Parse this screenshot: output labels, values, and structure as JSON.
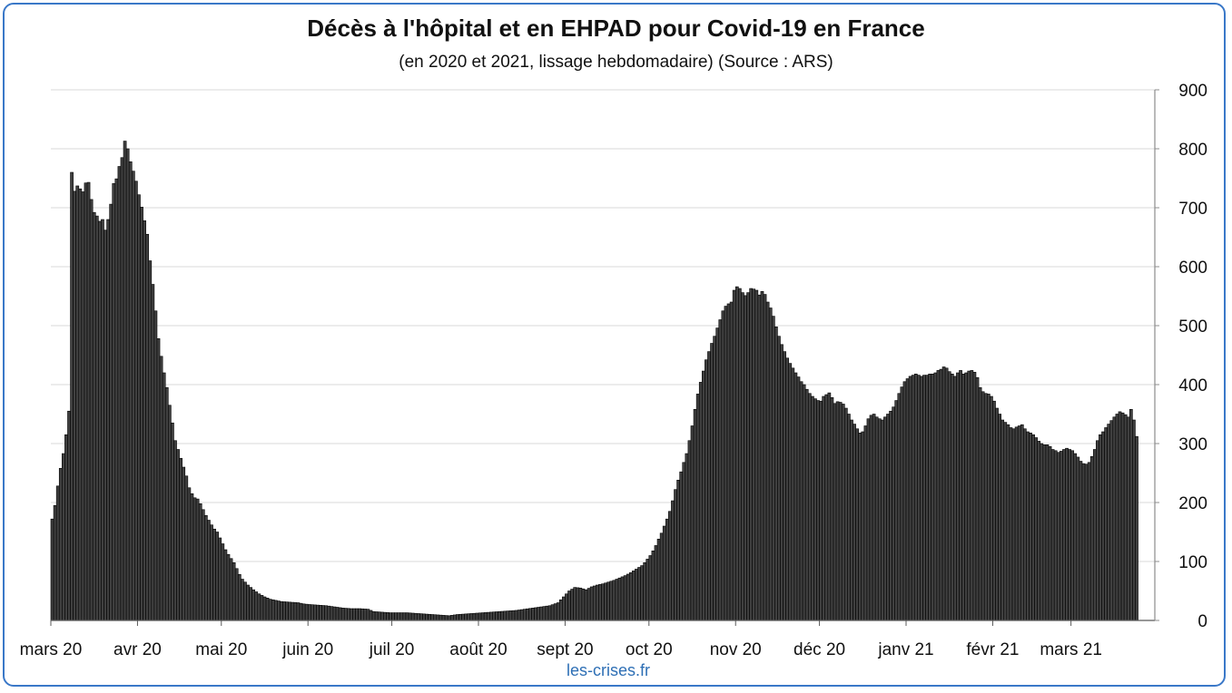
{
  "chart_data": {
    "type": "bar",
    "title": "Décès à l'hôpital et en EHPAD pour Covid-19 en France",
    "subtitle": "(en 2020 et 2021, lissage hebdomadaire) (Source : ARS)",
    "source": "les-crises.fr",
    "xlabel": "",
    "ylabel": "",
    "ylim": [
      0,
      900
    ],
    "y_ticks": [
      0,
      100,
      200,
      300,
      400,
      500,
      600,
      700,
      800,
      900
    ],
    "y_axis_side": "right",
    "grid": true,
    "legend": "none",
    "bar_color": "#404040",
    "x_tick_labels": [
      "mars 20",
      "avr 20",
      "mai 20",
      "juin 20",
      "juil 20",
      "août 20",
      "sept 20",
      "oct 20",
      "nov 20",
      "déc 20",
      "janv 21",
      "févr 21",
      "mars 21"
    ],
    "x_tick_days": [
      0,
      31,
      61,
      92,
      122,
      153,
      184,
      214,
      245,
      275,
      306,
      337,
      365
    ],
    "x_range_days": [
      0,
      395
    ],
    "x_start_date": "2020-03-01",
    "x_unit": "day index from 2020-03-01",
    "anchor_points": [
      [
        0,
        172
      ],
      [
        1,
        195
      ],
      [
        2,
        228
      ],
      [
        3,
        258
      ],
      [
        4,
        283
      ],
      [
        5,
        315
      ],
      [
        6,
        355
      ],
      [
        7,
        760
      ],
      [
        8,
        728
      ],
      [
        9,
        737
      ],
      [
        10,
        732
      ],
      [
        11,
        727
      ],
      [
        12,
        742
      ],
      [
        13,
        743
      ],
      [
        14,
        714
      ],
      [
        15,
        692
      ],
      [
        16,
        686
      ],
      [
        17,
        677
      ],
      [
        18,
        680
      ],
      [
        19,
        662
      ],
      [
        20,
        680
      ],
      [
        21,
        706
      ],
      [
        22,
        741
      ],
      [
        23,
        749
      ],
      [
        24,
        770
      ],
      [
        25,
        785
      ],
      [
        26,
        813
      ],
      [
        27,
        800
      ],
      [
        28,
        778
      ],
      [
        29,
        762
      ],
      [
        30,
        745
      ],
      [
        31,
        722
      ],
      [
        32,
        701
      ],
      [
        33,
        678
      ],
      [
        34,
        655
      ],
      [
        35,
        610
      ],
      [
        36,
        570
      ],
      [
        37,
        525
      ],
      [
        38,
        478
      ],
      [
        39,
        448
      ],
      [
        40,
        420
      ],
      [
        41,
        395
      ],
      [
        42,
        365
      ],
      [
        43,
        335
      ],
      [
        44,
        305
      ],
      [
        45,
        290
      ],
      [
        46,
        275
      ],
      [
        47,
        260
      ],
      [
        48,
        245
      ],
      [
        49,
        225
      ],
      [
        50,
        215
      ],
      [
        51,
        208
      ],
      [
        52,
        206
      ],
      [
        53,
        198
      ],
      [
        54,
        188
      ],
      [
        55,
        178
      ],
      [
        56,
        170
      ],
      [
        57,
        162
      ],
      [
        58,
        155
      ],
      [
        59,
        150
      ],
      [
        60,
        140
      ],
      [
        61,
        130
      ],
      [
        62,
        120
      ],
      [
        63,
        112
      ],
      [
        64,
        105
      ],
      [
        65,
        98
      ],
      [
        66,
        88
      ],
      [
        67,
        78
      ],
      [
        68,
        70
      ],
      [
        69,
        65
      ],
      [
        70,
        60
      ],
      [
        72,
        52
      ],
      [
        74,
        45
      ],
      [
        76,
        40
      ],
      [
        78,
        36
      ],
      [
        80,
        34
      ],
      [
        82,
        32
      ],
      [
        85,
        31
      ],
      [
        88,
        30
      ],
      [
        90,
        28
      ],
      [
        92,
        27
      ],
      [
        95,
        26
      ],
      [
        98,
        25
      ],
      [
        101,
        23
      ],
      [
        104,
        21
      ],
      [
        107,
        20
      ],
      [
        110,
        20
      ],
      [
        113,
        19
      ],
      [
        115,
        15
      ],
      [
        118,
        14
      ],
      [
        121,
        13
      ],
      [
        124,
        13
      ],
      [
        127,
        13
      ],
      [
        130,
        12
      ],
      [
        133,
        11
      ],
      [
        136,
        10
      ],
      [
        139,
        9
      ],
      [
        142,
        8
      ],
      [
        145,
        10
      ],
      [
        148,
        11
      ],
      [
        151,
        12
      ],
      [
        154,
        13
      ],
      [
        157,
        14
      ],
      [
        160,
        15
      ],
      [
        163,
        16
      ],
      [
        166,
        17
      ],
      [
        169,
        19
      ],
      [
        172,
        21
      ],
      [
        175,
        23
      ],
      [
        178,
        25
      ],
      [
        181,
        30
      ],
      [
        183,
        40
      ],
      [
        185,
        50
      ],
      [
        187,
        56
      ],
      [
        189,
        55
      ],
      [
        191,
        52
      ],
      [
        193,
        57
      ],
      [
        195,
        60
      ],
      [
        197,
        62
      ],
      [
        199,
        65
      ],
      [
        201,
        68
      ],
      [
        203,
        72
      ],
      [
        205,
        76
      ],
      [
        207,
        81
      ],
      [
        209,
        87
      ],
      [
        211,
        93
      ],
      [
        212,
        98
      ],
      [
        213,
        104
      ],
      [
        214,
        110
      ],
      [
        215,
        118
      ],
      [
        216,
        127
      ],
      [
        217,
        138
      ],
      [
        218,
        148
      ],
      [
        219,
        160
      ],
      [
        220,
        172
      ],
      [
        221,
        185
      ],
      [
        222,
        203
      ],
      [
        223,
        222
      ],
      [
        224,
        238
      ],
      [
        225,
        252
      ],
      [
        226,
        268
      ],
      [
        227,
        283
      ],
      [
        228,
        305
      ],
      [
        229,
        330
      ],
      [
        230,
        358
      ],
      [
        231,
        384
      ],
      [
        232,
        404
      ],
      [
        233,
        423
      ],
      [
        234,
        442
      ],
      [
        235,
        456
      ],
      [
        236,
        470
      ],
      [
        237,
        482
      ],
      [
        238,
        496
      ],
      [
        239,
        510
      ],
      [
        240,
        525
      ],
      [
        241,
        533
      ],
      [
        242,
        537
      ],
      [
        243,
        540
      ],
      [
        244,
        560
      ],
      [
        245,
        566
      ],
      [
        246,
        563
      ],
      [
        247,
        556
      ],
      [
        248,
        551
      ],
      [
        249,
        556
      ],
      [
        250,
        563
      ],
      [
        251,
        562
      ],
      [
        252,
        560
      ],
      [
        253,
        552
      ],
      [
        254,
        558
      ],
      [
        255,
        553
      ],
      [
        256,
        540
      ],
      [
        257,
        530
      ],
      [
        258,
        516
      ],
      [
        259,
        498
      ],
      [
        260,
        482
      ],
      [
        261,
        468
      ],
      [
        262,
        456
      ],
      [
        263,
        445
      ],
      [
        264,
        436
      ],
      [
        265,
        428
      ],
      [
        266,
        420
      ],
      [
        267,
        413
      ],
      [
        268,
        405
      ],
      [
        269,
        400
      ],
      [
        270,
        392
      ],
      [
        271,
        385
      ],
      [
        272,
        380
      ],
      [
        273,
        376
      ],
      [
        274,
        373
      ],
      [
        275,
        372
      ],
      [
        276,
        380
      ],
      [
        277,
        383
      ],
      [
        278,
        386
      ],
      [
        279,
        378
      ],
      [
        280,
        368
      ],
      [
        281,
        371
      ],
      [
        282,
        370
      ],
      [
        283,
        367
      ],
      [
        284,
        360
      ],
      [
        285,
        350
      ],
      [
        286,
        340
      ],
      [
        287,
        333
      ],
      [
        288,
        325
      ],
      [
        289,
        318
      ],
      [
        290,
        320
      ],
      [
        291,
        330
      ],
      [
        292,
        342
      ],
      [
        293,
        348
      ],
      [
        294,
        350
      ],
      [
        295,
        345
      ],
      [
        296,
        342
      ],
      [
        297,
        340
      ],
      [
        298,
        345
      ],
      [
        299,
        350
      ],
      [
        300,
        355
      ],
      [
        301,
        362
      ],
      [
        302,
        373
      ],
      [
        303,
        385
      ],
      [
        304,
        396
      ],
      [
        305,
        405
      ],
      [
        306,
        410
      ],
      [
        307,
        414
      ],
      [
        308,
        416
      ],
      [
        309,
        418
      ],
      [
        310,
        416
      ],
      [
        311,
        414
      ],
      [
        312,
        416
      ],
      [
        313,
        416
      ],
      [
        314,
        418
      ],
      [
        315,
        418
      ],
      [
        316,
        420
      ],
      [
        317,
        424
      ],
      [
        318,
        426
      ],
      [
        319,
        430
      ],
      [
        320,
        428
      ],
      [
        321,
        422
      ],
      [
        322,
        418
      ],
      [
        323,
        414
      ],
      [
        324,
        420
      ],
      [
        325,
        424
      ],
      [
        326,
        418
      ],
      [
        327,
        420
      ],
      [
        328,
        423
      ],
      [
        329,
        424
      ],
      [
        330,
        421
      ],
      [
        331,
        412
      ],
      [
        332,
        395
      ],
      [
        333,
        388
      ],
      [
        334,
        385
      ],
      [
        335,
        384
      ],
      [
        336,
        380
      ],
      [
        337,
        372
      ],
      [
        338,
        360
      ],
      [
        339,
        350
      ],
      [
        340,
        340
      ],
      [
        341,
        336
      ],
      [
        342,
        332
      ],
      [
        343,
        327
      ],
      [
        344,
        325
      ],
      [
        345,
        328
      ],
      [
        346,
        330
      ],
      [
        347,
        332
      ],
      [
        348,
        325
      ],
      [
        349,
        320
      ],
      [
        350,
        318
      ],
      [
        351,
        315
      ],
      [
        352,
        310
      ],
      [
        353,
        304
      ],
      [
        354,
        300
      ],
      [
        355,
        298
      ],
      [
        356,
        298
      ],
      [
        357,
        295
      ],
      [
        358,
        290
      ],
      [
        359,
        288
      ],
      [
        360,
        285
      ],
      [
        361,
        287
      ],
      [
        362,
        290
      ],
      [
        363,
        292
      ],
      [
        364,
        290
      ],
      [
        365,
        288
      ],
      [
        366,
        283
      ],
      [
        367,
        277
      ],
      [
        368,
        270
      ],
      [
        369,
        266
      ],
      [
        370,
        265
      ],
      [
        371,
        268
      ],
      [
        372,
        278
      ],
      [
        373,
        290
      ],
      [
        374,
        305
      ],
      [
        375,
        315
      ],
      [
        376,
        320
      ],
      [
        377,
        327
      ],
      [
        378,
        333
      ],
      [
        379,
        339
      ],
      [
        380,
        345
      ],
      [
        381,
        350
      ],
      [
        382,
        354
      ],
      [
        383,
        352
      ],
      [
        384,
        349
      ],
      [
        385,
        345
      ],
      [
        386,
        358
      ],
      [
        387,
        340
      ],
      [
        388,
        312
      ]
    ]
  }
}
